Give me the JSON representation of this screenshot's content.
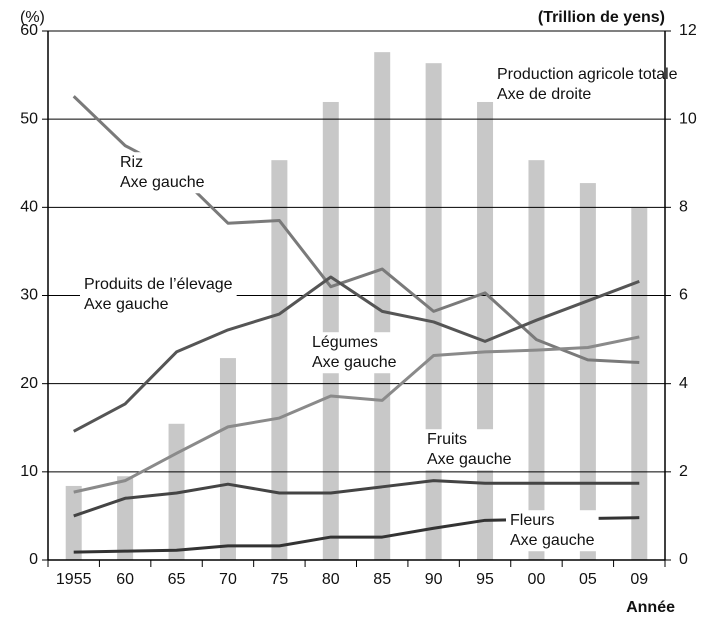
{
  "chart_data": {
    "type": "bar",
    "y_unit": "(%)",
    "y2_unit": "(Trillion de yens)",
    "x_label": "Année",
    "categories": [
      "1955",
      "60",
      "65",
      "70",
      "75",
      "80",
      "85",
      "90",
      "95",
      "00",
      "05",
      "09"
    ],
    "ylim": [
      0,
      60
    ],
    "yticks": [
      0,
      10,
      20,
      30,
      40,
      50,
      60
    ],
    "y2lim": [
      0,
      12
    ],
    "y2ticks": [
      0,
      2,
      4,
      6,
      8,
      10,
      12
    ],
    "grid": true,
    "series": [
      {
        "name": "Production agricole totale",
        "type": "bar",
        "axis": "y2",
        "color": "#c8c8c8",
        "values": [
          1.68,
          1.9,
          3.09,
          4.58,
          9.07,
          10.39,
          11.52,
          11.27,
          10.39,
          9.07,
          8.55,
          7.99
        ]
      },
      {
        "name": "Riz",
        "type": "line",
        "color": "#7a7a7a",
        "values": [
          52.6,
          47.0,
          43.9,
          38.2,
          38.5,
          31.0,
          33.0,
          28.2,
          30.3,
          25.0,
          22.7,
          22.4
        ]
      },
      {
        "name": "Produits de l’élevage",
        "type": "line",
        "color": "#555555",
        "values": [
          14.6,
          17.7,
          23.6,
          26.1,
          27.9,
          32.1,
          28.2,
          27.0,
          24.8,
          27.2,
          29.4,
          31.6
        ]
      },
      {
        "name": "Légumes",
        "type": "line",
        "color": "#8a8a8a",
        "values": [
          7.7,
          9.0,
          12.1,
          15.1,
          16.1,
          18.6,
          18.1,
          23.2,
          23.6,
          23.8,
          24.1,
          25.3
        ]
      },
      {
        "name": "Fruits",
        "type": "line",
        "color": "#444444",
        "values": [
          5.0,
          7.0,
          7.6,
          8.6,
          7.6,
          7.6,
          8.3,
          9.0,
          8.7,
          8.7,
          8.7,
          8.7
        ]
      },
      {
        "name": "Fleurs",
        "type": "line",
        "color": "#333333",
        "values": [
          0.9,
          1.0,
          1.1,
          1.6,
          1.6,
          2.6,
          2.6,
          3.6,
          4.5,
          4.6,
          4.7,
          4.8
        ]
      }
    ],
    "annotations": [
      {
        "lines": [
          "Riz",
          "Axe gauche"
        ]
      },
      {
        "lines": [
          "Produits de l’élevage",
          "Axe gauche"
        ]
      },
      {
        "lines": [
          "Légumes",
          "Axe gauche"
        ]
      },
      {
        "lines": [
          "Fruits",
          "Axe gauche"
        ]
      },
      {
        "lines": [
          "Fleurs",
          "Axe gauche"
        ]
      },
      {
        "lines": [
          "Production agricole totale",
          "Axe de droite"
        ]
      }
    ]
  }
}
